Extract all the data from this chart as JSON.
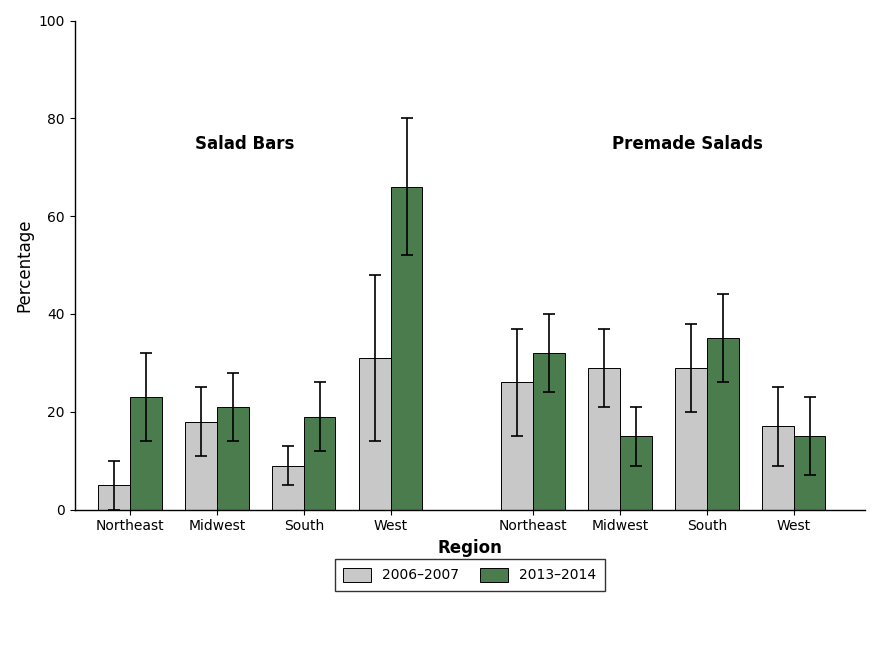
{
  "categories": [
    "Northeast",
    "Midwest",
    "South",
    "West"
  ],
  "salad_bars_2006": [
    5,
    18,
    9,
    31
  ],
  "salad_bars_2013": [
    23,
    21,
    19,
    66
  ],
  "salad_bars_err_2006": [
    5,
    7,
    4,
    17
  ],
  "salad_bars_err_2013": [
    9,
    7,
    7,
    14
  ],
  "premade_salads_2006": [
    26,
    29,
    29,
    17
  ],
  "premade_salads_2013": [
    32,
    15,
    35,
    15
  ],
  "premade_salads_err_2006": [
    11,
    8,
    9,
    8
  ],
  "premade_salads_err_2013": [
    8,
    6,
    9,
    8
  ],
  "color_2006": "#c8c8c8",
  "color_2013": "#4a7c4e",
  "ylabel": "Percentage",
  "xlabel": "Region",
  "ylim": [
    0,
    100
  ],
  "yticks": [
    0,
    20,
    40,
    60,
    80,
    100
  ],
  "salad_bars_label": "Salad Bars",
  "premade_salads_label": "Premade Salads",
  "legend_2006": "2006–2007",
  "legend_2013": "2013–2014",
  "bar_width": 0.4,
  "background_color": "#ffffff",
  "annotation_fontsize": 12,
  "axis_label_fontsize": 12,
  "tick_fontsize": 10
}
